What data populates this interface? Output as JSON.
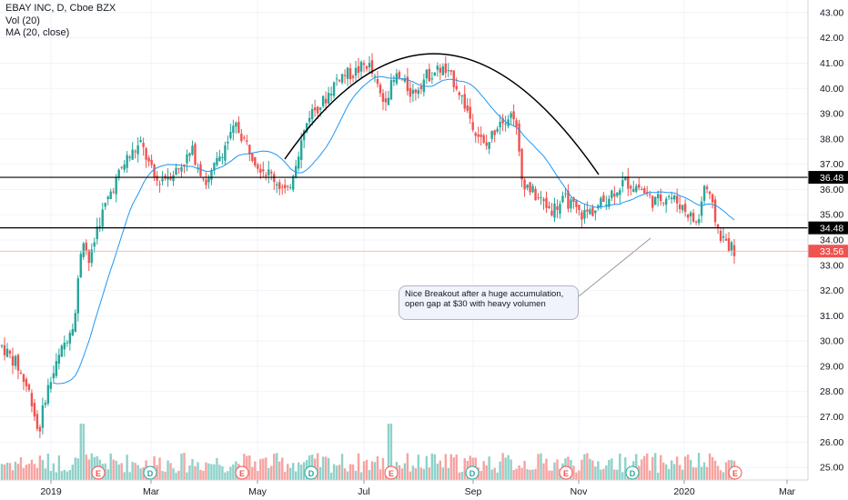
{
  "header": {
    "symbol_line": "EBAY INC, D, Cboe BZX",
    "vol_line": "Vol (20)",
    "ma_line": "MA (20, close)"
  },
  "annotation": {
    "text": "Nice Breakout after a huge accumulation, open gap at $30 with heavy volumen"
  },
  "colors": {
    "up": "#26a69a",
    "down": "#ef5350",
    "vol_up": "#8fd1c9",
    "vol_down": "#f6a3a1",
    "ma": "#2196f3",
    "grid": "#f0f3fa",
    "axis_text": "#131722",
    "level_line": "#000000",
    "price_tag": "#ef5350"
  },
  "chart_data": {
    "type": "candlestick",
    "y_axis": {
      "range": [
        24.5,
        43.5
      ],
      "ticks": [
        "25.00",
        "26.00",
        "27.00",
        "28.00",
        "29.00",
        "30.00",
        "31.00",
        "32.00",
        "33.00",
        "34.00",
        "35.00",
        "36.00",
        "37.00",
        "38.00",
        "39.00",
        "40.00",
        "41.00",
        "42.00",
        "43.00"
      ]
    },
    "x_axis": {
      "labels": [
        "2019",
        "Mar",
        "May",
        "Jul",
        "Sep",
        "Nov",
        "2020",
        "Mar"
      ]
    },
    "levels": [
      {
        "value": 36.48,
        "label": "36.48"
      },
      {
        "value": 34.48,
        "label": "34.48"
      }
    ],
    "last_price": {
      "value": 33.56,
      "label": "33.56"
    },
    "event_markers": [
      {
        "label": "E",
        "type": "earnings"
      },
      {
        "label": "D",
        "type": "dividend"
      },
      {
        "label": "E",
        "type": "earnings"
      },
      {
        "label": "D",
        "type": "dividend"
      },
      {
        "label": "E",
        "type": "earnings"
      },
      {
        "label": "D",
        "type": "dividend"
      },
      {
        "label": "E",
        "type": "earnings"
      },
      {
        "label": "D",
        "type": "dividend"
      },
      {
        "label": "E",
        "type": "earnings"
      }
    ],
    "price_path": [
      [
        0,
        29.8
      ],
      [
        0.02,
        29.1
      ],
      [
        0.04,
        27.8
      ],
      [
        0.05,
        26.3
      ],
      [
        0.06,
        27.9
      ],
      [
        0.08,
        29.5
      ],
      [
        0.1,
        31.0
      ],
      [
        0.11,
        34.3
      ],
      [
        0.12,
        33.0
      ],
      [
        0.13,
        34.5
      ],
      [
        0.15,
        36.0
      ],
      [
        0.17,
        37.2
      ],
      [
        0.19,
        37.8
      ],
      [
        0.21,
        36.3
      ],
      [
        0.24,
        36.8
      ],
      [
        0.26,
        37.5
      ],
      [
        0.28,
        36.2
      ],
      [
        0.3,
        37.5
      ],
      [
        0.32,
        38.5
      ],
      [
        0.35,
        37.0
      ],
      [
        0.37,
        36.5
      ],
      [
        0.39,
        35.8
      ],
      [
        0.4,
        37.0
      ],
      [
        0.42,
        39.0
      ],
      [
        0.44,
        39.5
      ],
      [
        0.46,
        40.5
      ],
      [
        0.48,
        40.6
      ],
      [
        0.5,
        41.0
      ],
      [
        0.52,
        39.5
      ],
      [
        0.54,
        40.5
      ],
      [
        0.56,
        39.8
      ],
      [
        0.58,
        40.5
      ],
      [
        0.6,
        40.8
      ],
      [
        0.62,
        40.2
      ],
      [
        0.64,
        38.8
      ],
      [
        0.66,
        37.6
      ],
      [
        0.68,
        38.8
      ],
      [
        0.7,
        39.0
      ],
      [
        0.71,
        36.4
      ],
      [
        0.73,
        35.7
      ],
      [
        0.75,
        35.2
      ],
      [
        0.77,
        35.6
      ],
      [
        0.79,
        35.0
      ],
      [
        0.81,
        35.2
      ],
      [
        0.83,
        35.8
      ],
      [
        0.85,
        36.3
      ],
      [
        0.87,
        36.1
      ],
      [
        0.89,
        35.5
      ],
      [
        0.91,
        35.8
      ],
      [
        0.93,
        35.3
      ],
      [
        0.95,
        34.6
      ],
      [
        0.96,
        36.3
      ],
      [
        0.98,
        34.2
      ],
      [
        1.0,
        33.56
      ]
    ]
  }
}
